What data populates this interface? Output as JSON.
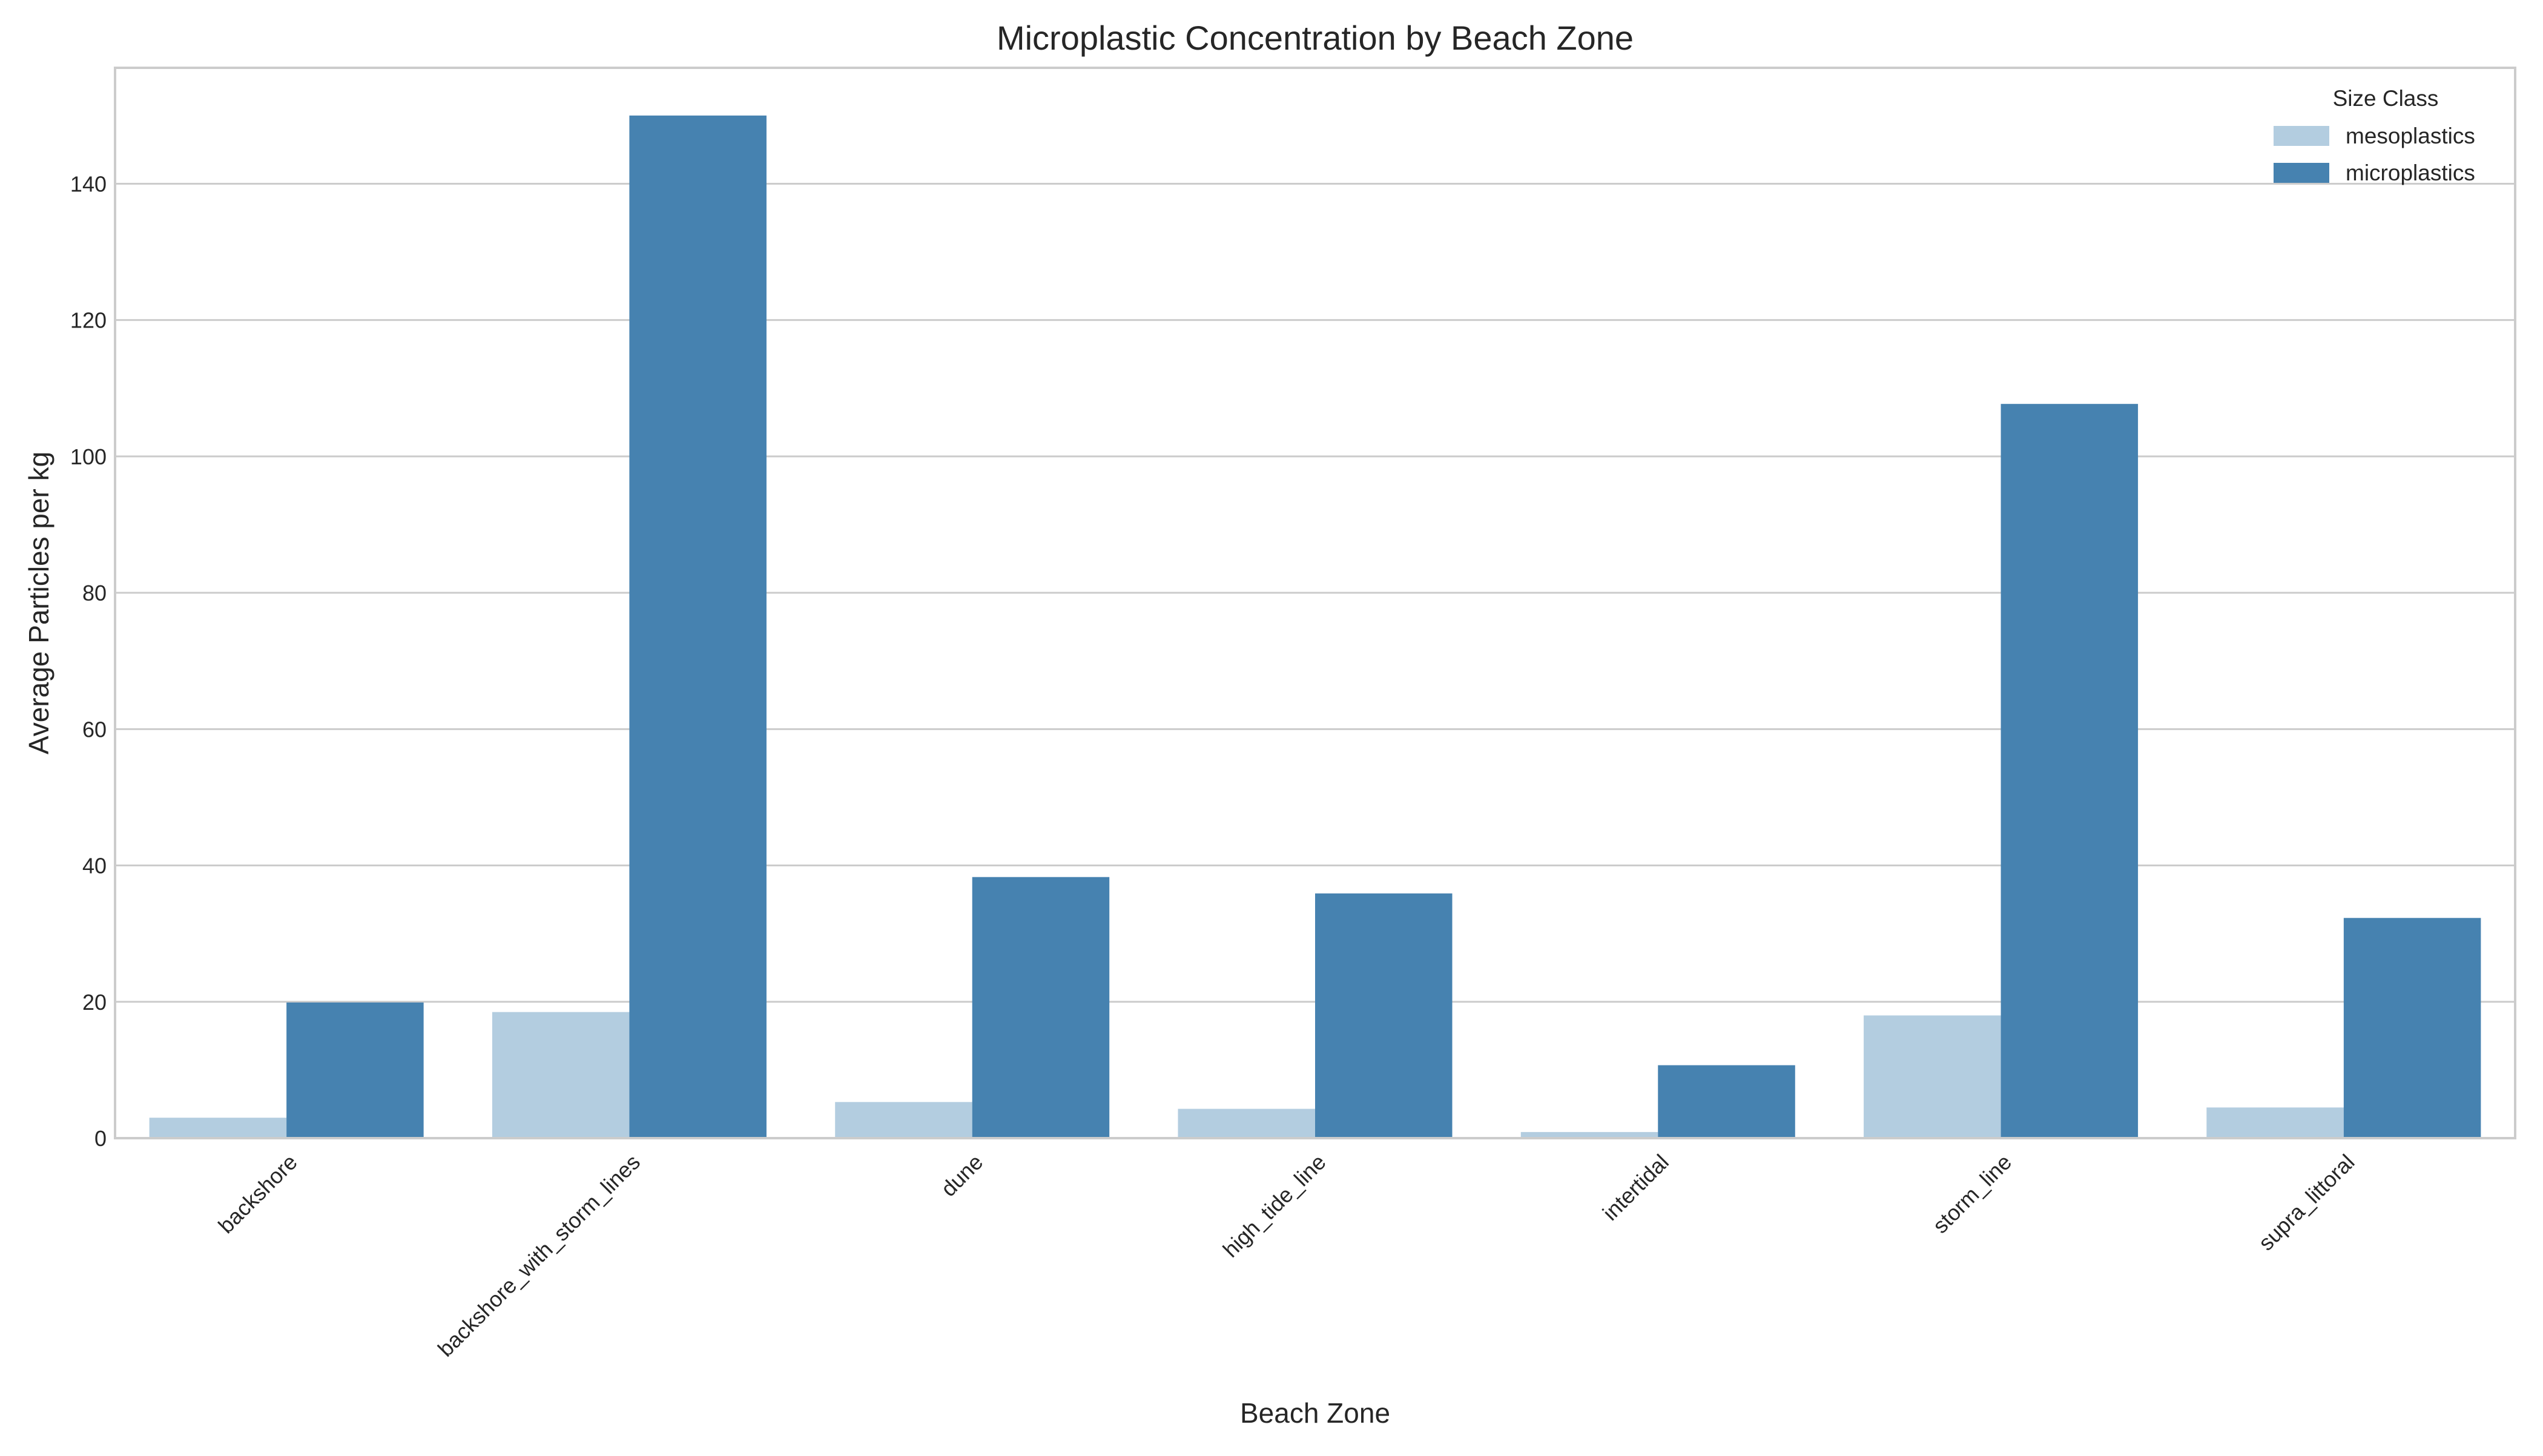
{
  "chart_data": {
    "type": "bar",
    "title": "Microplastic Concentration by Beach Zone",
    "xlabel": "Beach Zone",
    "ylabel": "Average Particles per kg",
    "categories": [
      "backshore",
      "backshore_with_storm_lines",
      "dune",
      "high_tide_line",
      "intertidal",
      "storm_line",
      "supra_littoral"
    ],
    "series": [
      {
        "name": "mesoplastics",
        "color": "#b3cde0",
        "values": [
          3.0,
          18.5,
          5.3,
          4.3,
          0.9,
          18.0,
          4.5
        ]
      },
      {
        "name": "microplastics",
        "color": "#4682b0",
        "values": [
          19.9,
          150.0,
          38.3,
          35.9,
          10.7,
          107.7,
          32.3
        ]
      }
    ],
    "ylim": [
      0,
      157
    ],
    "yticks": [
      0,
      20,
      40,
      60,
      80,
      100,
      120,
      140
    ],
    "grid": true,
    "legend": {
      "title": "Size Class",
      "position": "top-right"
    }
  }
}
